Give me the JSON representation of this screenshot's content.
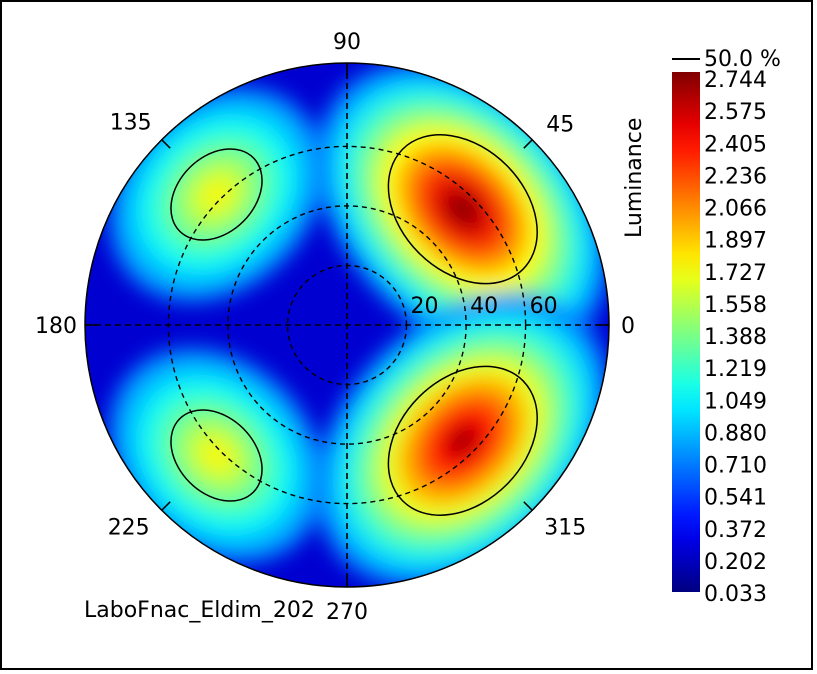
{
  "chart_data": {
    "type": "heatmap",
    "projection": "polar",
    "quantity_label": "Luminance",
    "footer_text": "LaboFnac_Eldim_202",
    "contour_label": "50.0 %",
    "azimuth_labels": [
      "0",
      "45",
      "90",
      "135",
      "180",
      "225",
      "270",
      "315"
    ],
    "azimuth_angles": [
      0,
      45,
      90,
      135,
      180,
      225,
      270,
      315
    ],
    "radial_labels": [
      "20",
      "40",
      "60"
    ],
    "radial_values": [
      20,
      40,
      60
    ],
    "radial_max": 88,
    "colorbar_ticks": [
      "2.744",
      "2.575",
      "2.405",
      "2.236",
      "2.066",
      "1.897",
      "1.727",
      "1.558",
      "1.388",
      "1.219",
      "1.049",
      "0.880",
      "0.710",
      "0.541",
      "0.372",
      "0.202",
      "0.033"
    ],
    "value_range": [
      0.033,
      2.744
    ],
    "peaks": [
      {
        "azimuth": 45,
        "inclination": 55,
        "value": 2.744
      },
      {
        "azimuth": 315,
        "inclination": 55,
        "value": 2.65
      },
      {
        "azimuth": 135,
        "inclination": 62,
        "value": 1.75
      },
      {
        "azimuth": 225,
        "inclination": 62,
        "value": 1.75
      }
    ],
    "colors": {
      "low": "#0000ff",
      "mid_low": "#00e0ff",
      "mid": "#00ff60",
      "mid_high": "#ffff00",
      "high": "#ff0000"
    }
  }
}
